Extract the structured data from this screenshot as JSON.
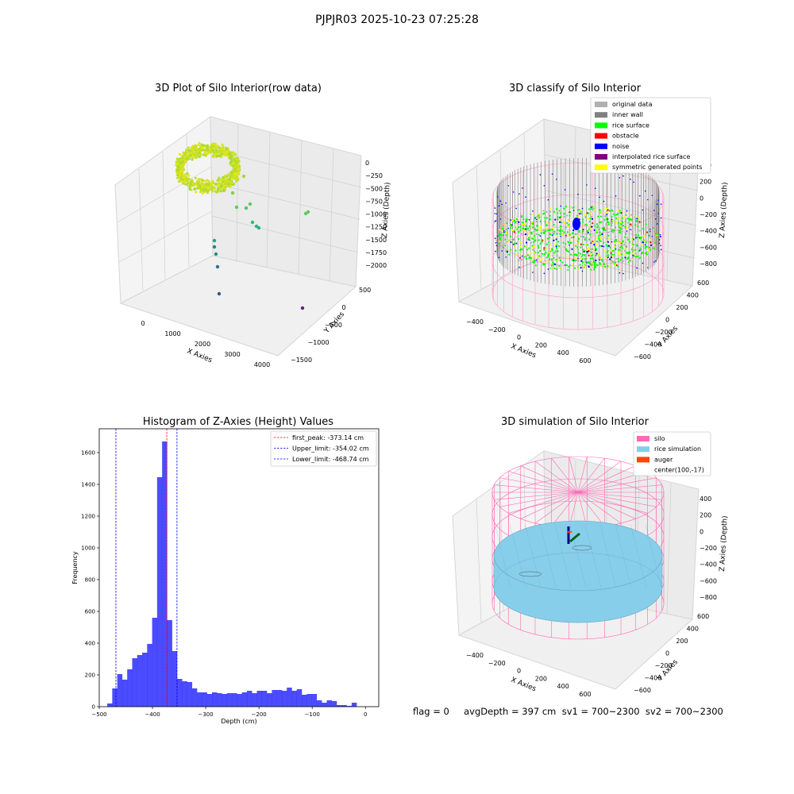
{
  "suptitle": "PJPJR03 2025-10-23 07:25:28",
  "panels": {
    "raw": {
      "title": "3D Plot of Silo Interior(row data)",
      "xlabel": "X Axies",
      "ylabel": "Y Axies",
      "zlabel": "Z Axies (Depth)",
      "xticks": [
        "0",
        "1000",
        "2000",
        "3000",
        "4000"
      ],
      "yticks": [
        "500",
        "0",
        "−500",
        "−1000",
        "−1500"
      ],
      "zticks": [
        "0",
        "−250",
        "−500",
        "−750",
        "−1000",
        "−1250",
        "−1500",
        "−1750",
        "−2000"
      ]
    },
    "classify": {
      "title": "3D classify of Silo Interior",
      "xlabel": "X Axies",
      "ylabel": "Y Axies",
      "zlabel": "Z Axies (Depth)",
      "xticks": [
        "−400",
        "−200",
        "0",
        "200",
        "400",
        "600"
      ],
      "yticks": [
        "600",
        "400",
        "200",
        "0",
        "−200",
        "−400",
        "−600"
      ],
      "zticks": [
        "400",
        "200",
        "0",
        "−200",
        "−400",
        "−600",
        "−800"
      ],
      "legend": [
        {
          "label": "original data",
          "color": "#b0b0b0"
        },
        {
          "label": "inner wall",
          "color": "#808080"
        },
        {
          "label": "rice surface",
          "color": "#00ff00"
        },
        {
          "label": "obstacle",
          "color": "#ff0000"
        },
        {
          "label": "noise",
          "color": "#0000ff"
        },
        {
          "label": "interpolated rice surface",
          "color": "#800080"
        },
        {
          "label": "symmetric generated points",
          "color": "#ffff00"
        }
      ]
    },
    "simulation": {
      "title": "3D simulation of Silo Interior",
      "xlabel": "X Axies",
      "ylabel": "Y Axies",
      "zlabel": "Z Axies (Depth)",
      "xticks": [
        "−400",
        "−200",
        "0",
        "200",
        "400",
        "600"
      ],
      "yticks": [
        "600",
        "400",
        "200",
        "0",
        "−200",
        "−400",
        "−600"
      ],
      "zticks": [
        "400",
        "200",
        "0",
        "−200",
        "−400",
        "−600",
        "−800"
      ],
      "legend": [
        {
          "label": "silo",
          "color": "#ff69b4"
        },
        {
          "label": "rice simulation",
          "color": "#87ceeb"
        },
        {
          "label": "auger",
          "color": "#ff4500"
        },
        {
          "label": "center(100,-17)",
          "color": "none"
        }
      ]
    }
  },
  "chart_data": {
    "type": "bar",
    "title": "Histogram of Z-Axies (Height) Values",
    "xlabel": "Depth (cm)",
    "ylabel": "Frequency",
    "xlim": [
      -500,
      25
    ],
    "ylim": [
      0,
      1750
    ],
    "xticks": [
      -500,
      -400,
      -300,
      -200,
      -100,
      0
    ],
    "yticks": [
      0,
      200,
      400,
      600,
      800,
      1000,
      1200,
      1400,
      1600
    ],
    "bin_start": -485,
    "bin_width": 9.37,
    "values": [
      20,
      115,
      205,
      170,
      235,
      305,
      325,
      340,
      395,
      560,
      1445,
      1670,
      545,
      350,
      175,
      160,
      155,
      115,
      90,
      90,
      80,
      90,
      85,
      80,
      85,
      85,
      80,
      90,
      100,
      85,
      100,
      100,
      85,
      105,
      105,
      100,
      120,
      100,
      110,
      75,
      80,
      80,
      40,
      25,
      40,
      35,
      10,
      10,
      5,
      25
    ],
    "bar_color": "#0000ff",
    "vlines": [
      {
        "label": "first_peak: -373.14 cm",
        "x": -373.14,
        "color": "#ff0000"
      },
      {
        "label": "Upper_limit: -354.02 cm",
        "x": -354.02,
        "color": "#0000ff"
      },
      {
        "label": "Lower_limit: -468.74 cm",
        "x": -468.74,
        "color": "#0000ff"
      }
    ]
  },
  "footer": "flag = 0     avgDepth = 397 cm  sv1 = 700~2300  sv2 = 700~2300"
}
